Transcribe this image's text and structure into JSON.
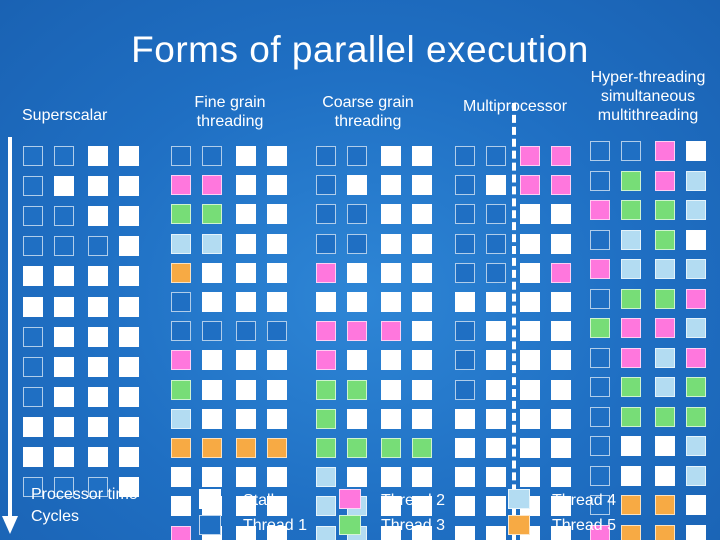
{
  "title": "Forms of parallel execution",
  "headers": {
    "superscalar": "Superscalar",
    "fine_grain": [
      "Fine grain",
      "threading"
    ],
    "coarse_grain": [
      "Coarse grain",
      "threading"
    ],
    "multiprocessor": "Multiprocessor",
    "smt": [
      "Hyper-threading",
      "simultaneous",
      "multithreading"
    ]
  },
  "time_caption": [
    "Processor time",
    "Cycles"
  ],
  "colors": {
    "S": "#ffffff",
    "T1": "#1f6fc3",
    "T2": "#ff77dd",
    "T3": "#77dd77",
    "T4": "#b3dcf2",
    "T5": "#f7aa44"
  },
  "legend": [
    {
      "key": "S",
      "label": "Stall"
    },
    {
      "key": "T1",
      "label": "Thread 1"
    },
    {
      "key": "T2",
      "label": "Thread 2"
    },
    {
      "key": "T3",
      "label": "Thread 3"
    },
    {
      "key": "T4",
      "label": "Thread 4"
    },
    {
      "key": "T5",
      "label": "Thread 5"
    }
  ],
  "grids": {
    "superscalar": [
      [
        "T1",
        "T1",
        "S",
        "S"
      ],
      [
        "T1",
        "S",
        "S",
        "S"
      ],
      [
        "T1",
        "T1",
        "S",
        "S"
      ],
      [
        "T1",
        "T1",
        "T1",
        "S"
      ],
      [
        "S",
        "S",
        "S",
        "S"
      ],
      [
        "S",
        "S",
        "S",
        "S"
      ],
      [
        "T1",
        "S",
        "S",
        "S"
      ],
      [
        "T1",
        "S",
        "S",
        "S"
      ],
      [
        "T1",
        "S",
        "S",
        "S"
      ],
      [
        "S",
        "S",
        "S",
        "S"
      ],
      [
        "S",
        "S",
        "S",
        "S"
      ],
      [
        "T1",
        "T1",
        "T1",
        "S"
      ]
    ],
    "fine_grain": [
      [
        "T1",
        "T1",
        "S",
        "S"
      ],
      [
        "T2",
        "T2",
        "S",
        "S"
      ],
      [
        "T3",
        "T3",
        "S",
        "S"
      ],
      [
        "T4",
        "T4",
        "S",
        "S"
      ],
      [
        "T5",
        "S",
        "S",
        "S"
      ],
      [
        "T1",
        "S",
        "S",
        "S"
      ],
      [
        "T1",
        "T1",
        "T1",
        "T1"
      ],
      [
        "T2",
        "S",
        "S",
        "S"
      ],
      [
        "T3",
        "S",
        "S",
        "S"
      ],
      [
        "T4",
        "S",
        "S",
        "S"
      ],
      [
        "T5",
        "T5",
        "T5",
        "T5"
      ],
      [
        "S",
        "S",
        "S",
        "S"
      ],
      [
        "S",
        "S",
        "S",
        "S"
      ],
      [
        "T2",
        "S",
        "S",
        "S"
      ]
    ],
    "coarse_grain": [
      [
        "T1",
        "T1",
        "S",
        "S"
      ],
      [
        "T1",
        "S",
        "S",
        "S"
      ],
      [
        "T1",
        "T1",
        "S",
        "S"
      ],
      [
        "T1",
        "T1",
        "S",
        "S"
      ],
      [
        "T2",
        "S",
        "S",
        "S"
      ],
      [
        "S",
        "S",
        "S",
        "S"
      ],
      [
        "T2",
        "T2",
        "T2",
        "S"
      ],
      [
        "T2",
        "S",
        "S",
        "S"
      ],
      [
        "T3",
        "T3",
        "S",
        "S"
      ],
      [
        "T3",
        "S",
        "S",
        "S"
      ],
      [
        "T3",
        "T3",
        "T3",
        "T3"
      ],
      [
        "T4",
        "S",
        "S",
        "S"
      ],
      [
        "T4",
        "T4",
        "S",
        "S"
      ],
      [
        "T4",
        "T4",
        "S",
        "S"
      ]
    ],
    "multiprocessor": [
      [
        "T1",
        "T1",
        "T2",
        "T2"
      ],
      [
        "T1",
        "S",
        "T2",
        "T2"
      ],
      [
        "T1",
        "T1",
        "S",
        "S"
      ],
      [
        "T1",
        "T1",
        "S",
        "S"
      ],
      [
        "T1",
        "T1",
        "S",
        "T2"
      ],
      [
        "S",
        "S",
        "S",
        "S"
      ],
      [
        "T1",
        "S",
        "S",
        "S"
      ],
      [
        "T1",
        "S",
        "S",
        "S"
      ],
      [
        "T1",
        "S",
        "S",
        "S"
      ],
      [
        "S",
        "S",
        "S",
        "S"
      ],
      [
        "S",
        "S",
        "S",
        "S"
      ],
      [
        "S",
        "S",
        "S",
        "S"
      ],
      [
        "S",
        "S",
        "S",
        "S"
      ],
      [
        "S",
        "S",
        "S",
        "S"
      ]
    ],
    "smt": [
      [
        "T1",
        "T1",
        "T2",
        "S"
      ],
      [
        "T1",
        "T3",
        "T2",
        "T4"
      ],
      [
        "T2",
        "T3",
        "T3",
        "T4"
      ],
      [
        "T1",
        "T4",
        "T3",
        "S"
      ],
      [
        "T2",
        "T4",
        "T4",
        "T4"
      ],
      [
        "T1",
        "T3",
        "T3",
        "T2"
      ],
      [
        "T3",
        "T2",
        "T2",
        "T4"
      ],
      [
        "T1",
        "T2",
        "T4",
        "T2"
      ],
      [
        "T1",
        "T3",
        "T4",
        "T3"
      ],
      [
        "T1",
        "T3",
        "T3",
        "T3"
      ],
      [
        "T1",
        "S",
        "S",
        "T4"
      ],
      [
        "T1",
        "S",
        "S",
        "T4"
      ],
      [
        "T1",
        "T5",
        "T5",
        "S"
      ],
      [
        "T2",
        "T5",
        "T5",
        "S"
      ]
    ]
  }
}
